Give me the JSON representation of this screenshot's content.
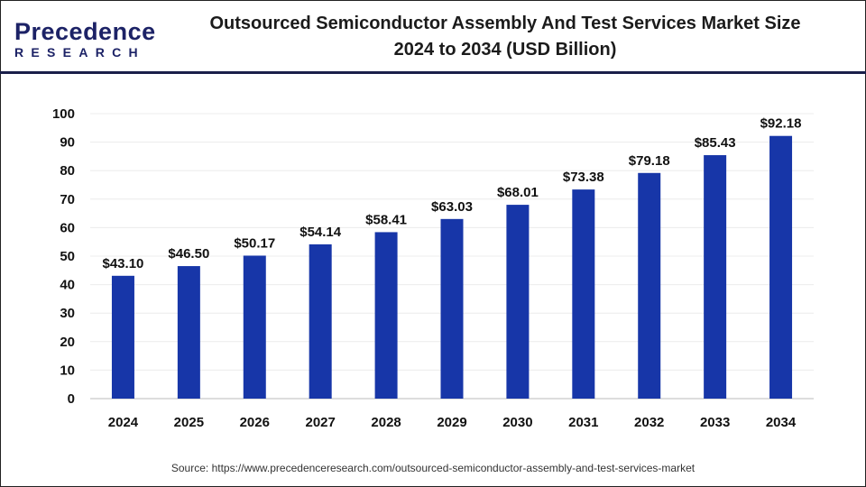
{
  "logo": {
    "main": "Precedence",
    "sub": "RESEARCH"
  },
  "header": {
    "title_line1": "Outsourced Semiconductor Assembly And Test Services Market Size",
    "title_line2": "2024 to 2034 (USD Billion)"
  },
  "source": "Source: https://www.precedenceresearch.com/outsourced-semiconductor-assembly-and-test-services-market",
  "colors": {
    "bar": "#1736a8",
    "header_line": "#1a1f4a",
    "grid": "#ececec"
  },
  "chart_data": {
    "type": "bar",
    "title": "Outsourced Semiconductor Assembly And Test Services Market Size 2024 to 2034 (USD Billion)",
    "categories": [
      "2024",
      "2025",
      "2026",
      "2027",
      "2028",
      "2029",
      "2030",
      "2031",
      "2032",
      "2033",
      "2034"
    ],
    "values": [
      43.1,
      46.5,
      50.17,
      54.14,
      58.41,
      63.03,
      68.01,
      73.38,
      79.18,
      85.43,
      92.18
    ],
    "data_labels": [
      "$43.10",
      "$46.50",
      "$50.17",
      "$54.14",
      "$58.41",
      "$63.03",
      "$68.01",
      "$73.38",
      "$79.18",
      "$85.43",
      "$92.18"
    ],
    "yticks": [
      0,
      10,
      20,
      30,
      40,
      50,
      60,
      70,
      80,
      90,
      100
    ],
    "ylim": [
      0,
      100
    ],
    "xlabel": "",
    "ylabel": "",
    "grid": true,
    "legend": "none"
  }
}
